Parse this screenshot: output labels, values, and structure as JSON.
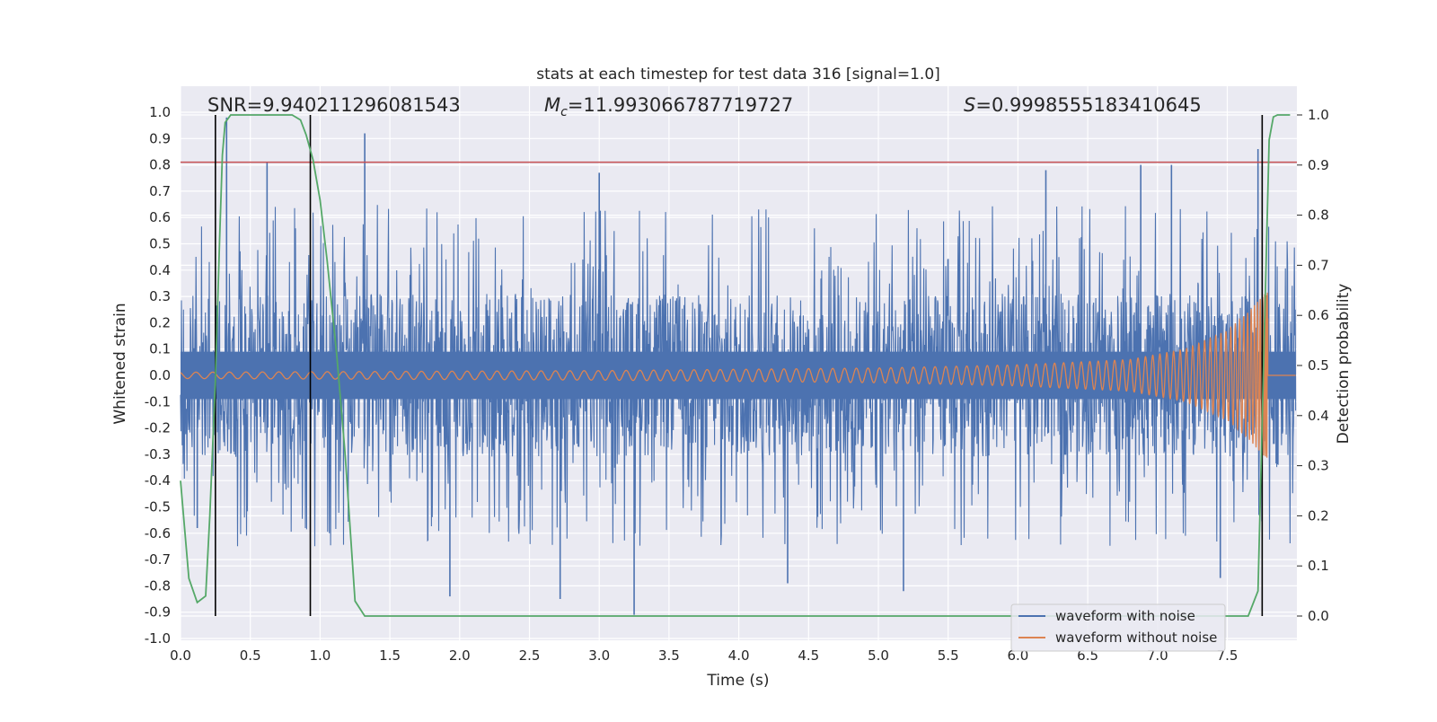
{
  "chart_data": {
    "type": "line",
    "title": "stats at each timestep for test data 316 [signal=1.0]",
    "xlabel": "Time (s)",
    "ylabel": "Whitened strain",
    "y2label": "Detection probability",
    "xlim": [
      0.0,
      8.0
    ],
    "ylim": [
      -1.0,
      1.0
    ],
    "y2lim": [
      -0.05,
      1.0
    ],
    "grid": true,
    "legend_location": "lower-right",
    "x_ticks": [
      "0.0",
      "0.5",
      "1.0",
      "1.5",
      "2.0",
      "2.5",
      "3.0",
      "3.5",
      "4.0",
      "4.5",
      "5.0",
      "5.5",
      "6.0",
      "6.5",
      "7.0",
      "7.5"
    ],
    "y_ticks": [
      "1.0",
      "0.9",
      "0.8",
      "0.7",
      "0.6",
      "0.5",
      "0.4",
      "0.3",
      "0.2",
      "0.1",
      "0.0",
      "-0.1",
      "-0.2",
      "-0.3",
      "-0.4",
      "-0.5",
      "-0.6",
      "-0.7",
      "-0.8",
      "-0.9",
      "-1.0"
    ],
    "y2_ticks": [
      "1.0",
      "0.9",
      "0.8",
      "0.7",
      "0.6",
      "0.5",
      "0.4",
      "0.3",
      "0.2",
      "0.1",
      "0.0"
    ],
    "annotations": {
      "snr": "SNR=9.940211296081543",
      "mc_symbol": "M",
      "mc_sub": "c",
      "mc_value": "=11.993066787719727",
      "s_symbol": "S",
      "s_value": "=0.9998555183410645"
    },
    "threshold_line": {
      "axis": "left",
      "y": 0.81,
      "color": "#c44e52"
    },
    "vertical_lines": [
      0.25,
      0.93,
      7.75
    ],
    "series": [
      {
        "name": "waveform with noise",
        "color": "#4c72b0",
        "axis": "left",
        "description": "noisy whitened strain, band roughly -0.4..0.4 with spikes",
        "spikes": [
          {
            "x": 0.33,
            "y": 0.98
          },
          {
            "x": 0.62,
            "y": 0.81
          },
          {
            "x": 1.32,
            "y": 0.92
          },
          {
            "x": 3.0,
            "y": 0.77
          },
          {
            "x": 6.2,
            "y": 0.78
          },
          {
            "x": 6.88,
            "y": 0.8
          },
          {
            "x": 7.1,
            "y": 0.8
          },
          {
            "x": 7.72,
            "y": 0.86
          },
          {
            "x": 3.25,
            "y": -0.91
          },
          {
            "x": 1.93,
            "y": -0.84
          },
          {
            "x": 2.72,
            "y": -0.85
          },
          {
            "x": 5.18,
            "y": -0.82
          },
          {
            "x": 4.35,
            "y": -0.79
          },
          {
            "x": 7.45,
            "y": -0.77
          },
          {
            "x": 0.12,
            "y": -0.58
          }
        ]
      },
      {
        "name": "waveform without noise",
        "color": "#dd8452",
        "axis": "left",
        "description": "chirp signal, amplitude grows from ~0.01 to ~0.3, merger at ~7.78 s",
        "amplitude": [
          {
            "x": 0.0,
            "y": 0.012
          },
          {
            "x": 3.0,
            "y": 0.018
          },
          {
            "x": 5.0,
            "y": 0.028
          },
          {
            "x": 6.0,
            "y": 0.04
          },
          {
            "x": 6.8,
            "y": 0.06
          },
          {
            "x": 7.2,
            "y": 0.1
          },
          {
            "x": 7.5,
            "y": 0.17
          },
          {
            "x": 7.65,
            "y": 0.24
          },
          {
            "x": 7.75,
            "y": 0.3
          },
          {
            "x": 7.79,
            "y": 0.32
          }
        ]
      },
      {
        "name": "detection probability",
        "color": "#55a868",
        "axis": "right",
        "x": [
          0.0,
          0.06,
          0.12,
          0.18,
          0.21,
          0.25,
          0.28,
          0.3,
          0.32,
          0.36,
          0.5,
          0.7,
          0.8,
          0.86,
          0.9,
          0.95,
          1.0,
          1.05,
          1.12,
          1.18,
          1.25,
          1.32,
          1.5,
          2.0,
          4.0,
          6.0,
          7.0,
          7.5,
          7.65,
          7.72,
          7.76,
          7.8,
          7.83,
          7.86,
          7.95
        ],
        "values": [
          0.27,
          0.075,
          0.027,
          0.04,
          0.2,
          0.47,
          0.75,
          0.92,
          0.985,
          1.0,
          1.0,
          1.0,
          1.0,
          0.99,
          0.96,
          0.91,
          0.83,
          0.71,
          0.52,
          0.32,
          0.03,
          0.0,
          0.0,
          0.0,
          0.0,
          0.0,
          0.0,
          0.0,
          0.0,
          0.05,
          0.5,
          0.95,
          0.996,
          1.0,
          1.0
        ]
      }
    ]
  }
}
